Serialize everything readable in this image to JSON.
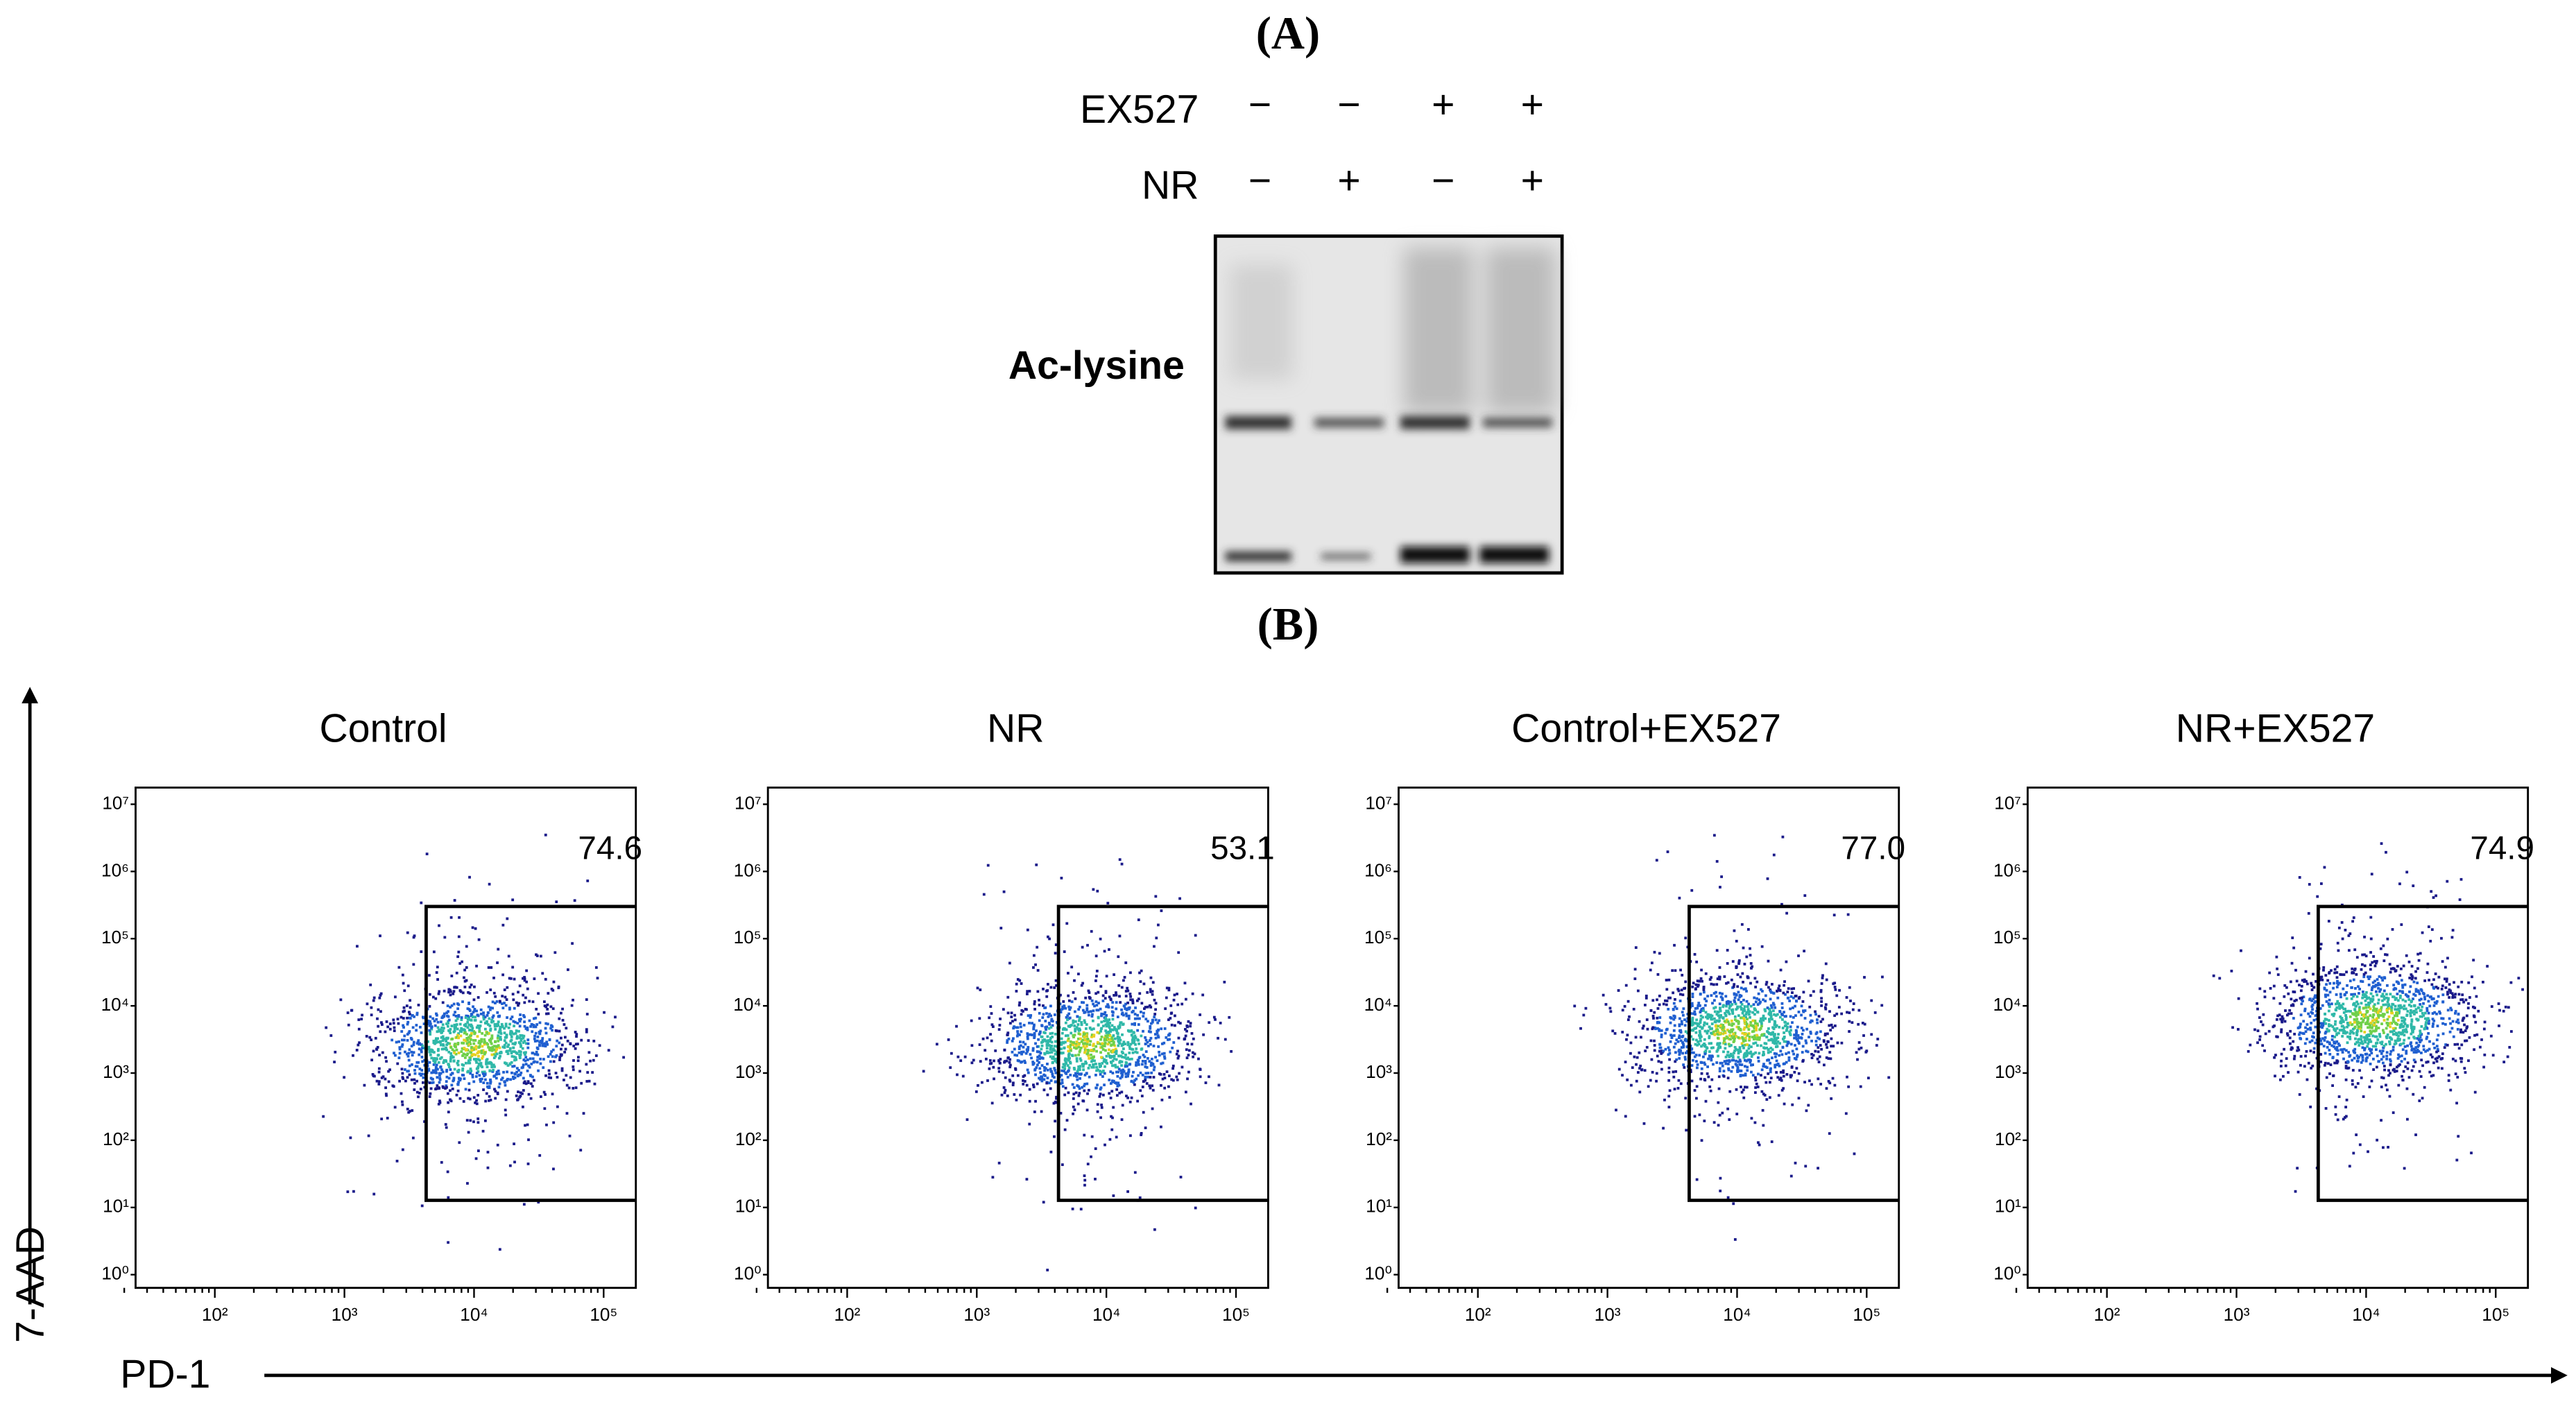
{
  "panel_a": {
    "label": "(A)",
    "treatments": [
      {
        "name": "EX527",
        "signs": [
          "−",
          "−",
          "+",
          "+"
        ]
      },
      {
        "name": "NR",
        "signs": [
          "−",
          "+",
          "−",
          "+"
        ]
      }
    ],
    "blot_label": "Ac-lysine"
  },
  "panel_b": {
    "label": "(B)",
    "y_axis_label": "7-AAD",
    "x_axis_label": "PD-1",
    "y_ticks": [
      "10⁰",
      "10¹",
      "10²",
      "10³",
      "10⁴",
      "10⁵",
      "10⁶",
      "10⁷"
    ],
    "x_ticks": [
      "10²",
      "10³",
      "10⁴",
      "10⁵"
    ],
    "plots": [
      {
        "title": "Control",
        "gate_value": "74.6"
      },
      {
        "title": "NR",
        "gate_value": "53.1"
      },
      {
        "title": "Control+EX527",
        "gate_value": "77.0"
      },
      {
        "title": "NR+EX527",
        "gate_value": "74.9"
      }
    ]
  }
}
